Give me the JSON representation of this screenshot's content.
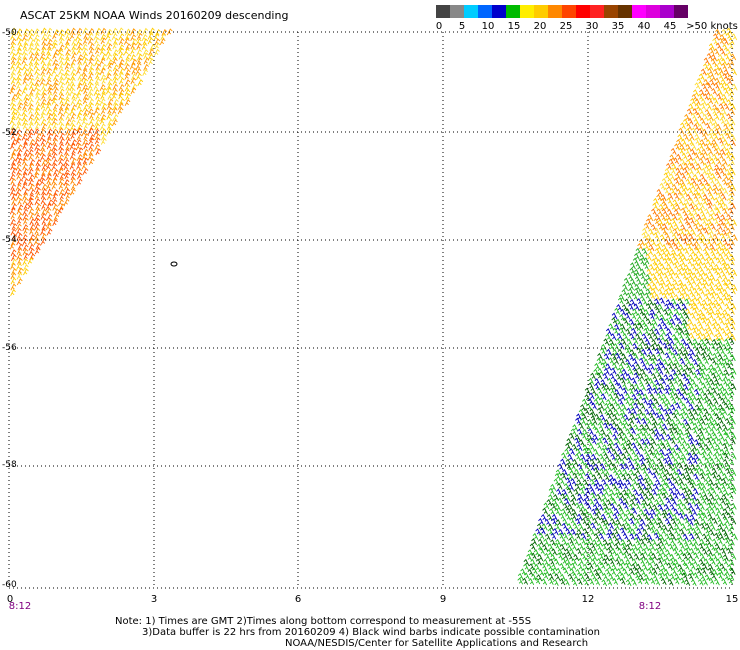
{
  "title": "ASCAT 25KM NOAA Winds 20160209 descending",
  "colorbar": {
    "colors": [
      "#444444",
      "#888888",
      "#00ccff",
      "#0066ff",
      "#0000cc",
      "#00bb00",
      "#ffee00",
      "#ffcc00",
      "#ff8800",
      "#ff4400",
      "#ff0000",
      "#ff2222",
      "#994400",
      "#663300",
      "#ff00ff",
      "#dd00dd",
      "#aa00cc",
      "#660066"
    ],
    "labels": [
      "0",
      "5",
      "10",
      "15",
      "20",
      "25",
      "30",
      "35",
      "40",
      "45",
      ">50 knots"
    ]
  },
  "axes": {
    "lat_labels": [
      "-50",
      "-52",
      "-54",
      "-56",
      "-58",
      "-60"
    ],
    "lon_labels": [
      "0",
      "3",
      "6",
      "9",
      "12",
      "15"
    ],
    "time_labels": [
      "8:12",
      "8:12"
    ]
  },
  "island_label": "0",
  "notes": {
    "line1": "Note: 1) Times are GMT 2)Times along bottom correspond to measurement at -55S",
    "line2": "3)Data buffer is 22 hrs from 20160209 4) Black wind barbs indicate possible contamination",
    "line3": "NOAA/NESDIS/Center for Satellite Applications and Research"
  }
}
